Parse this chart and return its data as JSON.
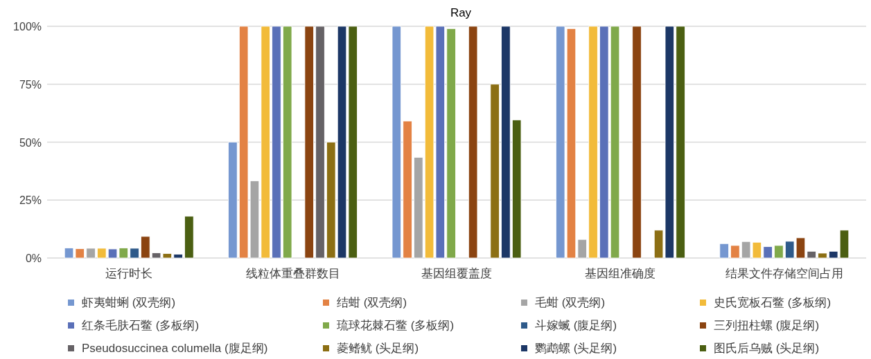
{
  "chart_data": {
    "type": "bar",
    "title": "Ray",
    "categories": [
      "运行时长",
      "线粒体重叠群数目",
      "基因组覆盖度",
      "基因组准确度",
      "结果文件存储空间占用"
    ],
    "ylim": [
      0,
      100
    ],
    "yticks": [
      {
        "value": 0,
        "label": "0%"
      },
      {
        "value": 25,
        "label": "25%"
      },
      {
        "value": 50,
        "label": "50%"
      },
      {
        "value": 75,
        "label": "75%"
      },
      {
        "value": 100,
        "label": "100%"
      }
    ],
    "grid": "y",
    "legend": "bottom",
    "series": [
      {
        "name": "虾夷蚶蜊 (双壳纲)",
        "color": "#7597d0",
        "values": [
          4.3,
          50,
          100,
          100,
          6.2
        ]
      },
      {
        "name": "结蚶 (双壳纲)",
        "color": "#e38244",
        "values": [
          4.0,
          100,
          59.1,
          99,
          5.4
        ]
      },
      {
        "name": "毛蚶 (双壳纲)",
        "color": "#a5a5a5",
        "values": [
          4.2,
          33.3,
          43.4,
          8.0,
          7.1
        ]
      },
      {
        "name": "史氏宽板石鳖 (多板纲)",
        "color": "#f2bb3a",
        "values": [
          4.2,
          100,
          100,
          100,
          6.8
        ]
      },
      {
        "name": "红条毛肤石鳖 (多板纲)",
        "color": "#5a70b8",
        "values": [
          3.9,
          100,
          100,
          100,
          4.9
        ]
      },
      {
        "name": "琉球花棘石鳖 (多板纲)",
        "color": "#80a94a",
        "values": [
          4.3,
          100,
          99,
          100,
          5.4
        ]
      },
      {
        "name": "斗嫁蝛 (腹足纲)",
        "color": "#2e5a8a",
        "values": [
          4.2,
          0,
          0,
          0,
          7.2
        ]
      },
      {
        "name": "三列扭柱螺 (腹足纲)",
        "color": "#8b4411",
        "values": [
          9.3,
          100,
          100,
          100,
          8.7
        ]
      },
      {
        "name": "Pseudosuccinea columella (腹足纲)",
        "color": "#666266",
        "values": [
          2.2,
          100,
          0,
          0,
          2.9
        ]
      },
      {
        "name": "菱鳍鱿 (头足纲)",
        "color": "#8c6f14",
        "values": [
          1.9,
          50,
          75,
          12,
          2.1
        ]
      },
      {
        "name": "鹦鹉螺 (头足纲)",
        "color": "#1c3766",
        "values": [
          1.6,
          100,
          100,
          100,
          2.9
        ]
      },
      {
        "name": "图氏后乌贼 (头足纲)",
        "color": "#4b5f12",
        "values": [
          18.0,
          100,
          59.6,
          100,
          12.0
        ]
      }
    ]
  }
}
